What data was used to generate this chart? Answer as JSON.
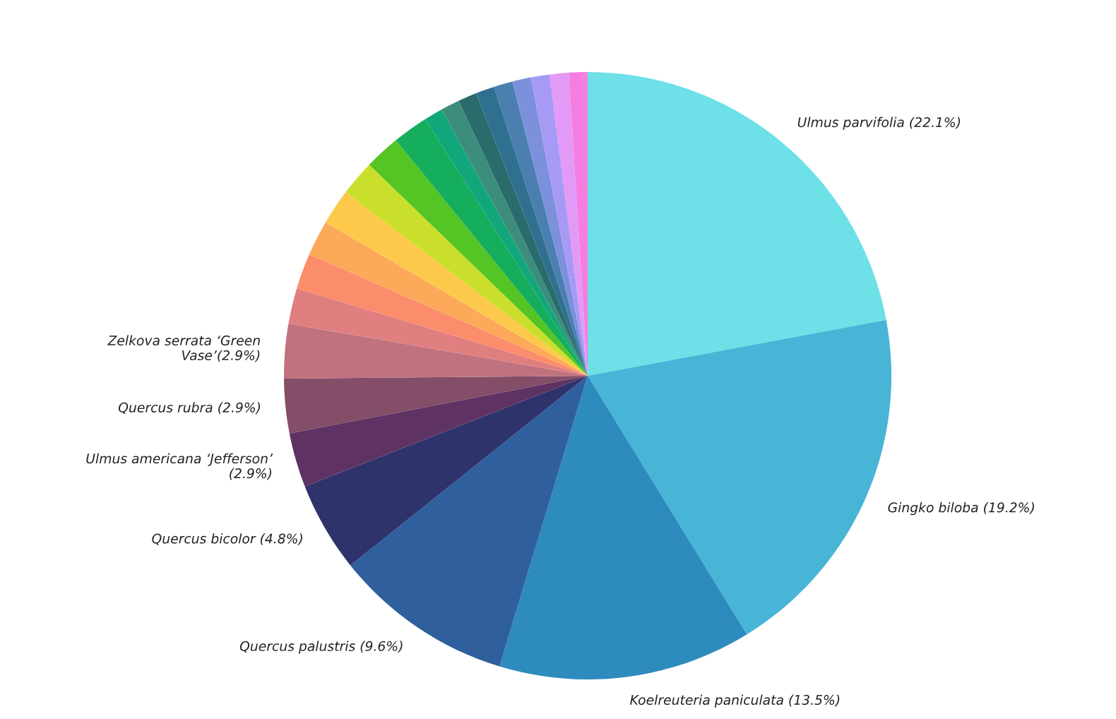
{
  "chart_data": {
    "type": "pie",
    "categories": [
      "Ulmus parvifolia (22.1%)",
      "Gingko biloba (19.2%)",
      "Koelreuteria paniculata (13.5%)",
      "Quercus palustris (9.6%)",
      "Quercus bicolor (4.8%)",
      "Ulmus americana ‘Jefferson’ (2.9%)",
      "Quercus rubra (2.9%)",
      "Zelkova serrata ‘Green Vase’(2.9%)",
      null,
      null,
      null,
      null,
      null,
      null,
      null,
      null,
      null,
      null,
      null,
      null,
      null,
      null,
      null,
      null
    ],
    "values": [
      22.1,
      19.2,
      13.5,
      9.6,
      4.8,
      2.9,
      2.9,
      2.9,
      1.9,
      1.9,
      1.9,
      1.9,
      1.9,
      1.9,
      1.9,
      1.0,
      1.0,
      1.0,
      1.0,
      1.0,
      1.0,
      1.0,
      1.0,
      1.0
    ],
    "colors": [
      "#6de0e8",
      "#48b4d6",
      "#2e8bbd",
      "#2f5f9c",
      "#2e336b",
      "#5e3363",
      "#844d68",
      "#c0727f",
      "#e07f7f",
      "#fb8c6c",
      "#fda95a",
      "#fdc94a",
      "#c9df2c",
      "#55c425",
      "#14ae5c",
      "#12a77a",
      "#3c8d7b",
      "#2a6b6b",
      "#2f7090",
      "#4a7fb0",
      "#7c90dc",
      "#a79af5",
      "#e39af7",
      "#f57ee0"
    ]
  }
}
